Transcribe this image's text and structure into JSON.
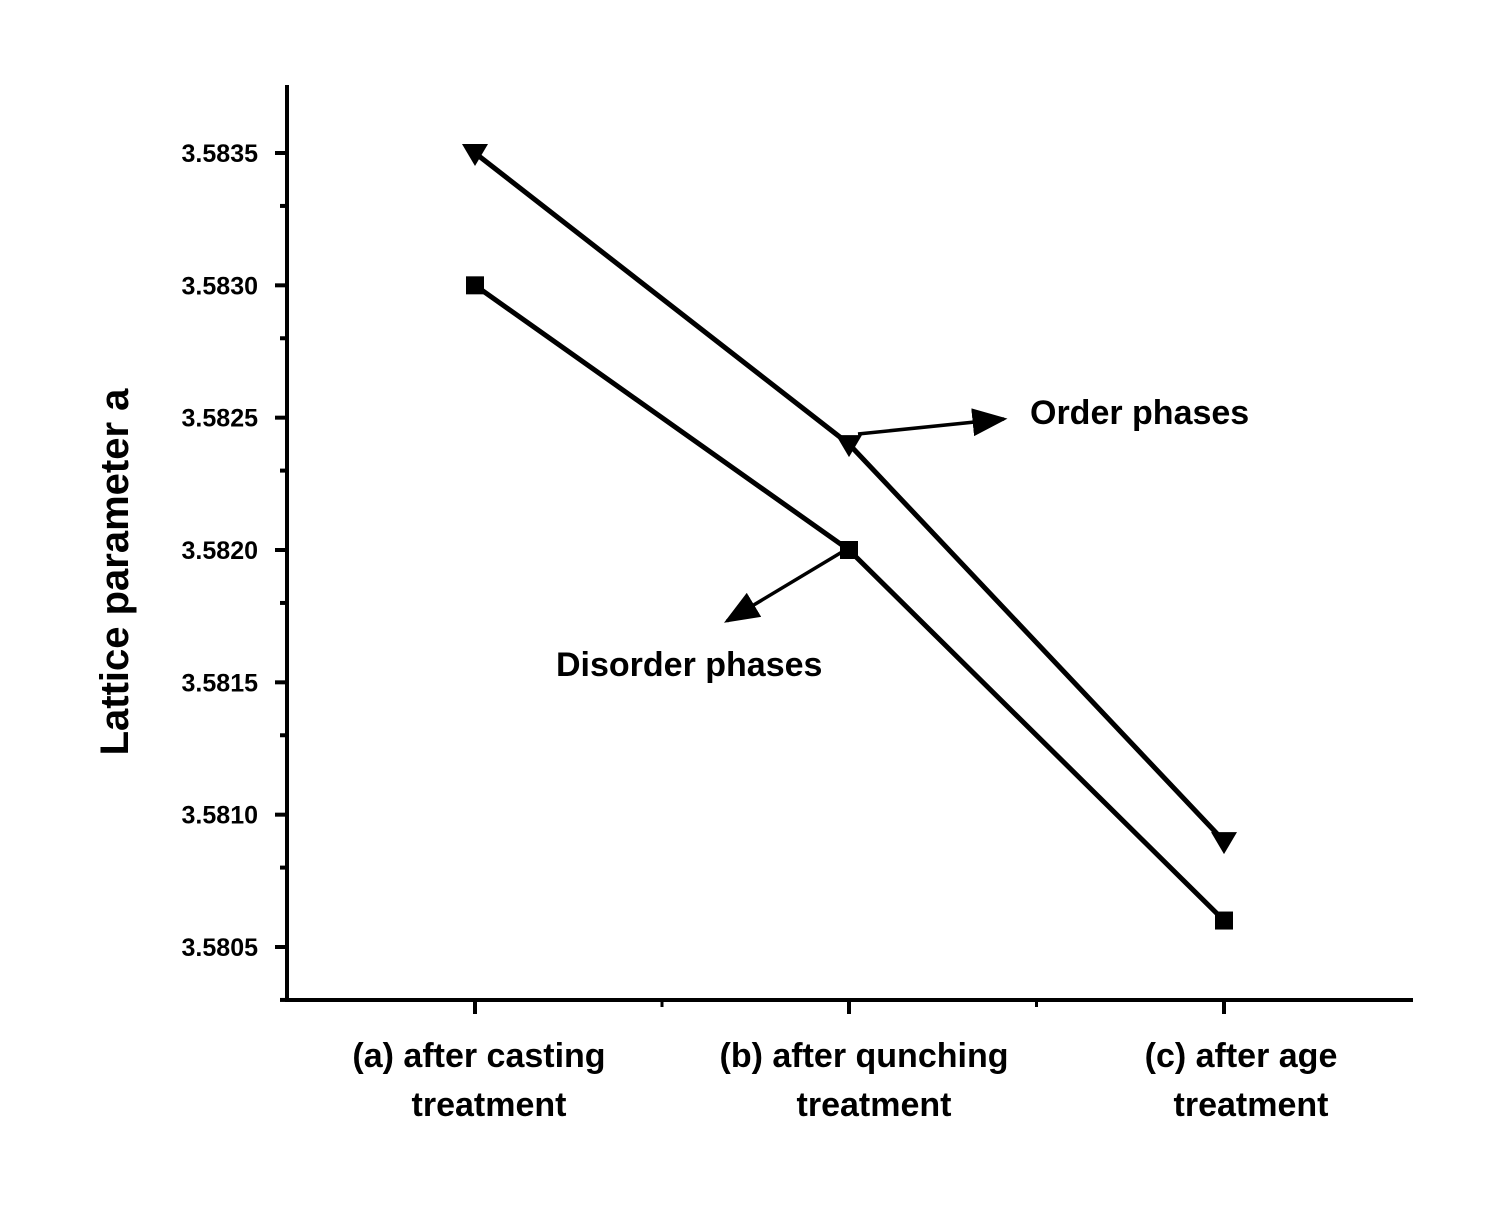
{
  "chart_data": {
    "type": "line",
    "categories": [
      [
        "(a) after casting",
        "treatment"
      ],
      [
        "(b) after qunching",
        "treatment"
      ],
      [
        "(c) after age",
        "treatment"
      ]
    ],
    "ylabel": "Lattice parameter a",
    "xlabel": "",
    "ylim": [
      3.5803,
      3.58375
    ],
    "yticks": [
      "3.5805",
      "3.5810",
      "3.5815",
      "3.5820",
      "3.5825",
      "3.5830",
      "3.5835"
    ],
    "grid": false,
    "series": [
      {
        "marker": "triangle-down",
        "values": [
          3.5835,
          3.5824,
          3.5809
        ]
      },
      {
        "marker": "square",
        "values": [
          3.583,
          3.582,
          3.5806
        ]
      }
    ],
    "annotations": [
      "Order phases",
      "Disorder phases"
    ],
    "colors": {
      "line": "#000000",
      "background": "#ffffff"
    }
  }
}
